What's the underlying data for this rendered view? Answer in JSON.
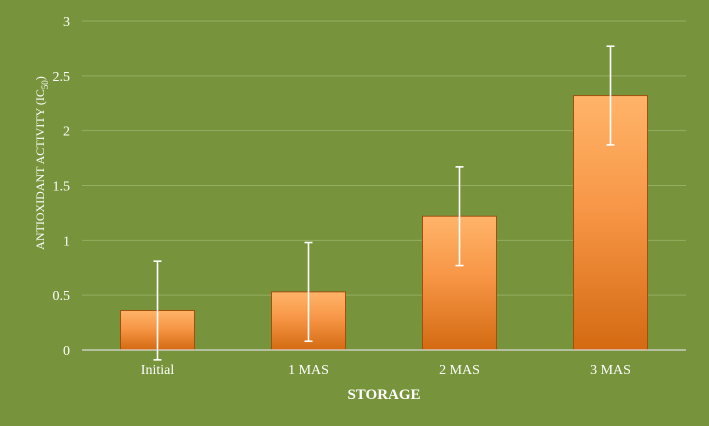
{
  "chart_data": {
    "type": "bar",
    "categories": [
      "Initial",
      "1 MAS",
      "2 MAS",
      "3 MAS"
    ],
    "values": [
      0.36,
      0.53,
      1.22,
      2.32
    ],
    "error": [
      0.45,
      0.45,
      0.45,
      0.45
    ],
    "xlabel": "STORAGE",
    "ylabel": {
      "main": "ANTIOXIDANT ACTIVITY (IC",
      "sub": "50",
      "close": ")"
    },
    "ylim": [
      0,
      3
    ],
    "yticks": [
      0,
      0.5,
      1,
      1.5,
      2,
      2.5,
      3
    ],
    "ytick_labels": [
      "0",
      "0.5",
      "1",
      "1.5",
      "2",
      "2.5",
      "3"
    ],
    "grid": true,
    "legend": "none"
  },
  "colors": {
    "background": "#77933c",
    "bar_top": "#ffb469",
    "bar_mid": "#f79646",
    "bar_bottom": "#d46a12",
    "bar_edge": "#a34f0c",
    "gridline": "#93ad62",
    "axis": "#d9d9d9",
    "error_bar": "#ffffff",
    "text": "#ffffff"
  }
}
